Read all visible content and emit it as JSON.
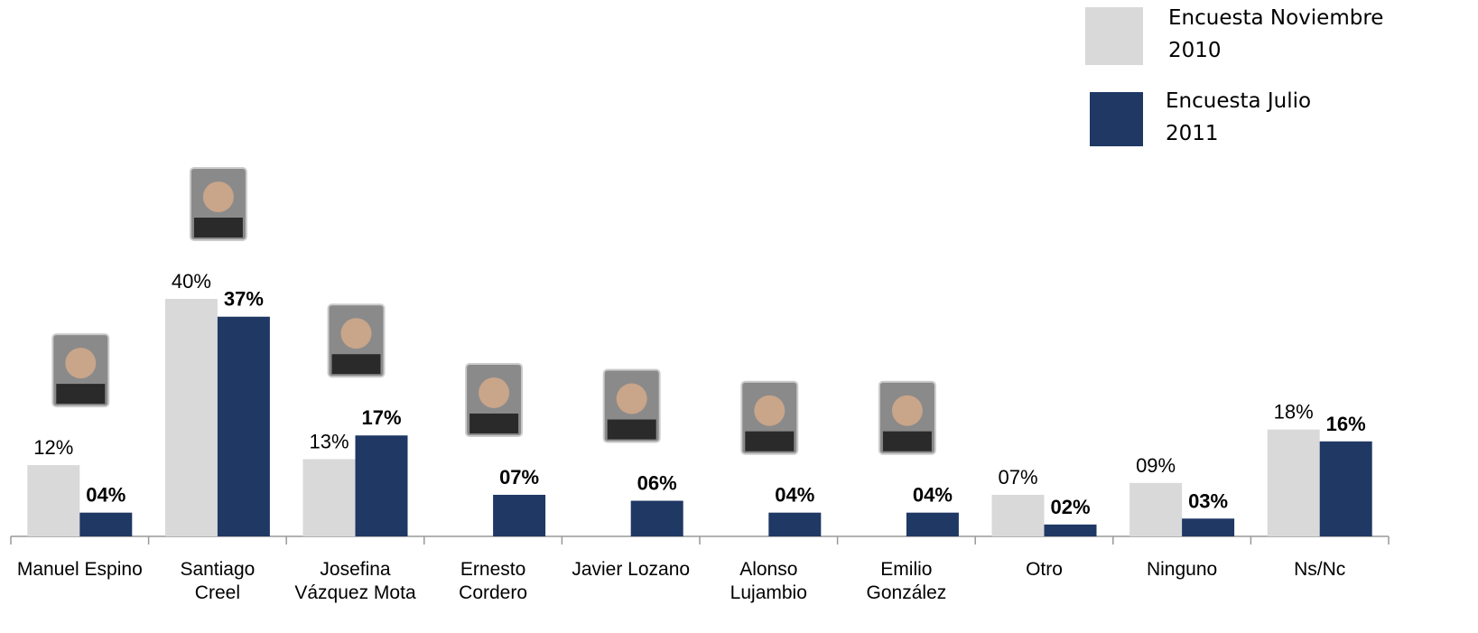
{
  "chart_data": {
    "type": "bar",
    "categories": [
      "Manuel Espino",
      "Santiago\nCreel",
      "Josefina\nVázquez Mota",
      "Ernesto\nCordero",
      "Javier Lozano",
      "Alonso\nLujambio",
      "Emilio\nGonzález",
      "Otro",
      "Ninguno",
      "Ns/Nc"
    ],
    "series": [
      {
        "name": "Encuesta Noviembre\n2010",
        "color": "#d9d9d9",
        "values": [
          12,
          40,
          13,
          null,
          null,
          null,
          null,
          7,
          9,
          18
        ],
        "value_labels": [
          "12%",
          "40%",
          "13%",
          null,
          null,
          null,
          null,
          "07%",
          "09%",
          "18%"
        ]
      },
      {
        "name": "Encuesta Julio\n2011",
        "color": "#1f3864",
        "values": [
          4,
          37,
          17,
          7,
          6,
          4,
          4,
          2,
          3,
          16
        ],
        "value_labels": [
          "04%",
          "37%",
          "17%",
          "07%",
          "06%",
          "04%",
          "04%",
          "02%",
          "03%",
          "16%"
        ]
      }
    ],
    "legend": "top-right"
  }
}
